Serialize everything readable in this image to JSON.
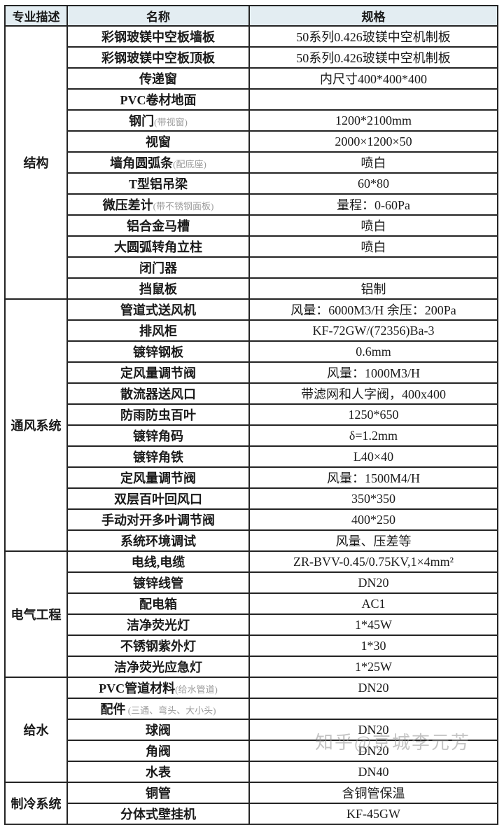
{
  "page": {
    "watermark": "知乎@京城李元芳"
  },
  "colors": {
    "header_bg": "#e3edf2",
    "border": "#242424",
    "text": "#1a1a1a",
    "note_text": "#9b9b9b",
    "watermark": "#949494"
  },
  "table": {
    "headers": {
      "category": "专业描述",
      "name": "名称",
      "spec": "规格"
    },
    "sections": [
      {
        "label": "结构",
        "rows": [
          {
            "name": "彩钢玻镁中空板墙板",
            "sub": "",
            "spec": "50系列0.426玻镁中空机制板"
          },
          {
            "name": "彩钢玻镁中空板顶板",
            "sub": "",
            "spec": "50系列0.426玻镁中空机制板"
          },
          {
            "name": "传递窗",
            "sub": "",
            "spec": "内尺寸400*400*400"
          },
          {
            "name": "PVC卷材地面",
            "sub": "",
            "spec": ""
          },
          {
            "name": "钢门",
            "sub": "(带视窗)",
            "spec": "1200*2100mm"
          },
          {
            "name": "视窗",
            "sub": "",
            "spec": "2000×1200×50"
          },
          {
            "name": "墙角圆弧条",
            "sub": "(配底座)",
            "spec": "喷白"
          },
          {
            "name": "T型铝吊梁",
            "sub": "",
            "spec": "60*80"
          },
          {
            "name": "微压差计",
            "sub": "(带不锈钢面板)",
            "spec": "量程：0-60Pa"
          },
          {
            "name": "铝合金马槽",
            "sub": "",
            "spec": "喷白"
          },
          {
            "name": "大圆弧转角立柱",
            "sub": "",
            "spec": "喷白"
          },
          {
            "name": "闭门器",
            "sub": "",
            "spec": ""
          },
          {
            "name": "挡鼠板",
            "sub": "",
            "spec": "铝制"
          }
        ]
      },
      {
        "label": "通风系统",
        "rows": [
          {
            "name": "管道式送风机",
            "sub": "",
            "spec": "风量：6000M3/H 余压：200Pa"
          },
          {
            "name": "排风柜",
            "sub": "",
            "spec": "KF-72GW/(72356)Ba-3"
          },
          {
            "name": "镀锌钢板",
            "sub": "",
            "spec": "0.6mm"
          },
          {
            "name": "定风量调节阀",
            "sub": "",
            "spec": "风量：1000M3/H"
          },
          {
            "name": "散流器送风口",
            "sub": "",
            "spec": "带滤网和人字阀，400x400"
          },
          {
            "name": "防雨防虫百叶",
            "sub": "",
            "spec": "1250*650"
          },
          {
            "name": "镀锌角码",
            "sub": "",
            "spec": "δ=1.2mm"
          },
          {
            "name": "镀锌角铁",
            "sub": "",
            "spec": "L40×40"
          },
          {
            "name": "定风量调节阀",
            "sub": "",
            "spec": "风量：1500M4/H"
          },
          {
            "name": "双层百叶回风口",
            "sub": "",
            "spec": "350*350"
          },
          {
            "name": "手动对开多叶调节阀",
            "sub": "",
            "spec": "400*250"
          },
          {
            "name": "系统环境调试",
            "sub": "",
            "spec": "风量、压差等"
          }
        ]
      },
      {
        "label": "电气工程",
        "rows": [
          {
            "name": "电线,电缆",
            "sub": "",
            "spec": "ZR-BVV-0.45/0.75KV,1×4mm²"
          },
          {
            "name": "镀锌线管",
            "sub": "",
            "spec": "DN20"
          },
          {
            "name": "配电箱",
            "sub": "",
            "spec": "AC1"
          },
          {
            "name": "洁净荧光灯",
            "sub": "",
            "spec": "1*45W"
          },
          {
            "name": "不锈钢紫外灯",
            "sub": "",
            "spec": "1*30"
          },
          {
            "name": "洁净荧光应急灯",
            "sub": "",
            "spec": "1*25W"
          }
        ]
      },
      {
        "label": "给水",
        "rows": [
          {
            "name": "PVC管道材料",
            "sub": "(给水管道)",
            "spec": "DN20"
          },
          {
            "name": "配件",
            "sub": " (三通、弯头、大小头)",
            "spec": ""
          },
          {
            "name": "球阀",
            "sub": "",
            "spec": "DN20"
          },
          {
            "name": "角阀",
            "sub": "",
            "spec": "DN20"
          },
          {
            "name": "水表",
            "sub": "",
            "spec": "DN40"
          }
        ]
      },
      {
        "label": "制冷系统",
        "rows": [
          {
            "name": "铜管",
            "sub": "",
            "spec": "含铜管保温"
          },
          {
            "name": "分体式壁挂机",
            "sub": "",
            "spec": "KF-45GW"
          }
        ]
      }
    ]
  }
}
